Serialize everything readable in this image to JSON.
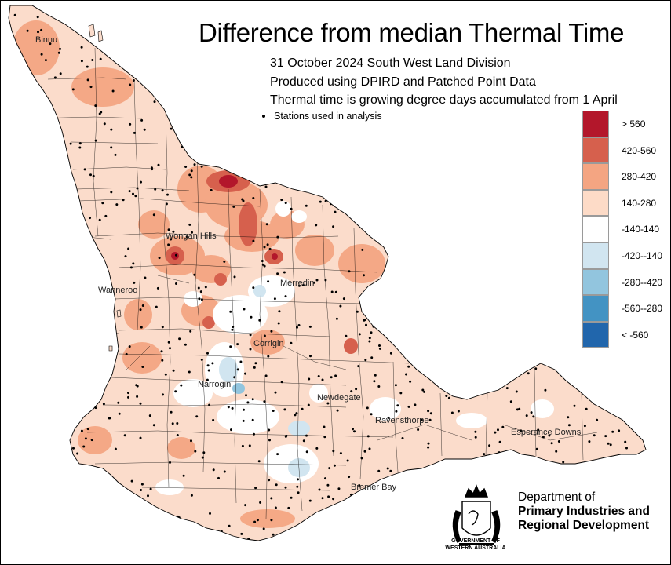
{
  "title": "Difference from median Thermal Time",
  "subtitles": [
    "31 October 2024 South West Land Division",
    "Produced using DPIRD and Patched Point Data",
    "Thermal time is growing degree days accumulated from 1 April"
  ],
  "stations_legend": "Stations used in analysis",
  "legend": [
    {
      "label": "> 560",
      "color": "#b3172b"
    },
    {
      "label": "420-560",
      "color": "#d6604d"
    },
    {
      "label": "280-420",
      "color": "#f4a582"
    },
    {
      "label": "140-280",
      "color": "#fddbc7"
    },
    {
      "label": "-140-140",
      "color": "#ffffff"
    },
    {
      "label": "-420--140",
      "color": "#d1e5f0"
    },
    {
      "label": "-280--420",
      "color": "#92c5de"
    },
    {
      "label": "-560--280",
      "color": "#4393c3"
    },
    {
      "label": "< -560",
      "color": "#2166ac"
    }
  ],
  "places": [
    {
      "name": "Binnu"
    },
    {
      "name": "Wongan Hills"
    },
    {
      "name": "Wanneroo"
    },
    {
      "name": "Merredin"
    },
    {
      "name": "Corrigin"
    },
    {
      "name": "Narrogin"
    },
    {
      "name": "Newdegate"
    },
    {
      "name": "Ravensthorpe"
    },
    {
      "name": "Esperance Downs"
    },
    {
      "name": "Bremer Bay"
    }
  ],
  "department": {
    "line1": "Department of",
    "line2": "Primary Industries and",
    "line3": "Regional Development",
    "gov1": "GOVERNMENT OF",
    "gov2": "WESTERN AUSTRALIA"
  }
}
